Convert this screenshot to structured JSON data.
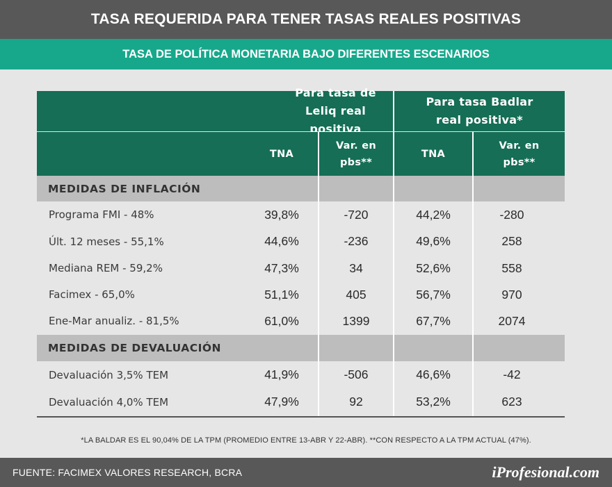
{
  "title": "TASA REQUERIDA PARA TENER TASAS REALES POSITIVAS",
  "subtitle": "TASA DE POLÍTICA MONETARIA BAJO DIFERENTES ESCENARIOS",
  "header": {
    "group_leliq_line1": "Para tasa de",
    "group_leliq_line2": "Leliq real positiva",
    "group_badlar_line1": "Para tasa Badlar",
    "group_badlar_line2": "real positiva*",
    "tna_leliq": "TNA",
    "var_leliq_line1": "Var. en",
    "var_leliq_line2": "pbs**",
    "tna_badlar": "TNA",
    "var_badlar_line1": "Var. en",
    "var_badlar_line2": "pbs**"
  },
  "sections": [
    {
      "title": "MEDIDAS DE INFLACIÓN",
      "rows": [
        {
          "label": "Programa FMI - 48%",
          "tna_leliq": "39,8%",
          "var_leliq": "-720",
          "tna_badlar": "44,2%",
          "var_badlar": "-280"
        },
        {
          "label": "Últ. 12 meses - 55,1%",
          "tna_leliq": "44,6%",
          "var_leliq": "-236",
          "tna_badlar": "49,6%",
          "var_badlar": "258"
        },
        {
          "label": "Mediana REM - 59,2%",
          "tna_leliq": "47,3%",
          "var_leliq": "34",
          "tna_badlar": "52,6%",
          "var_badlar": "558"
        },
        {
          "label": "Facimex - 65,0%",
          "tna_leliq": "51,1%",
          "var_leliq": "405",
          "tna_badlar": "56,7%",
          "var_badlar": "970"
        },
        {
          "label": "Ene-Mar anualiz. - 81,5%",
          "tna_leliq": "61,0%",
          "var_leliq": "1399",
          "tna_badlar": "67,7%",
          "var_badlar": "2074"
        }
      ]
    },
    {
      "title": "MEDIDAS DE DEVALUACIÓN",
      "rows": [
        {
          "label": "Devaluación 3,5% TEM",
          "tna_leliq": "41,9%",
          "var_leliq": "-506",
          "tna_badlar": "46,6%",
          "var_badlar": "-42"
        },
        {
          "label": "Devaluación 4,0% TEM",
          "tna_leliq": "47,9%",
          "var_leliq": "92",
          "tna_badlar": "53,2%",
          "var_badlar": "623"
        }
      ]
    }
  ],
  "footnote": "*LA BALDAR ES EL 90,04% DE LA TPM (PROMEDIO ENTRE 13-ABR Y 22-ABR). **CON RESPECTO A LA TPM ACTUAL (47%).",
  "source": "FUENTE: FACIMEX VALORES RESEARCH, BCRA",
  "brand": "iProfesional.com",
  "colors": {
    "title_bar": "#585858",
    "subtitle_bar": "#17a88c",
    "table_header": "#156e55",
    "section_band": "#bdbdbd",
    "background": "#e6e6e6"
  }
}
